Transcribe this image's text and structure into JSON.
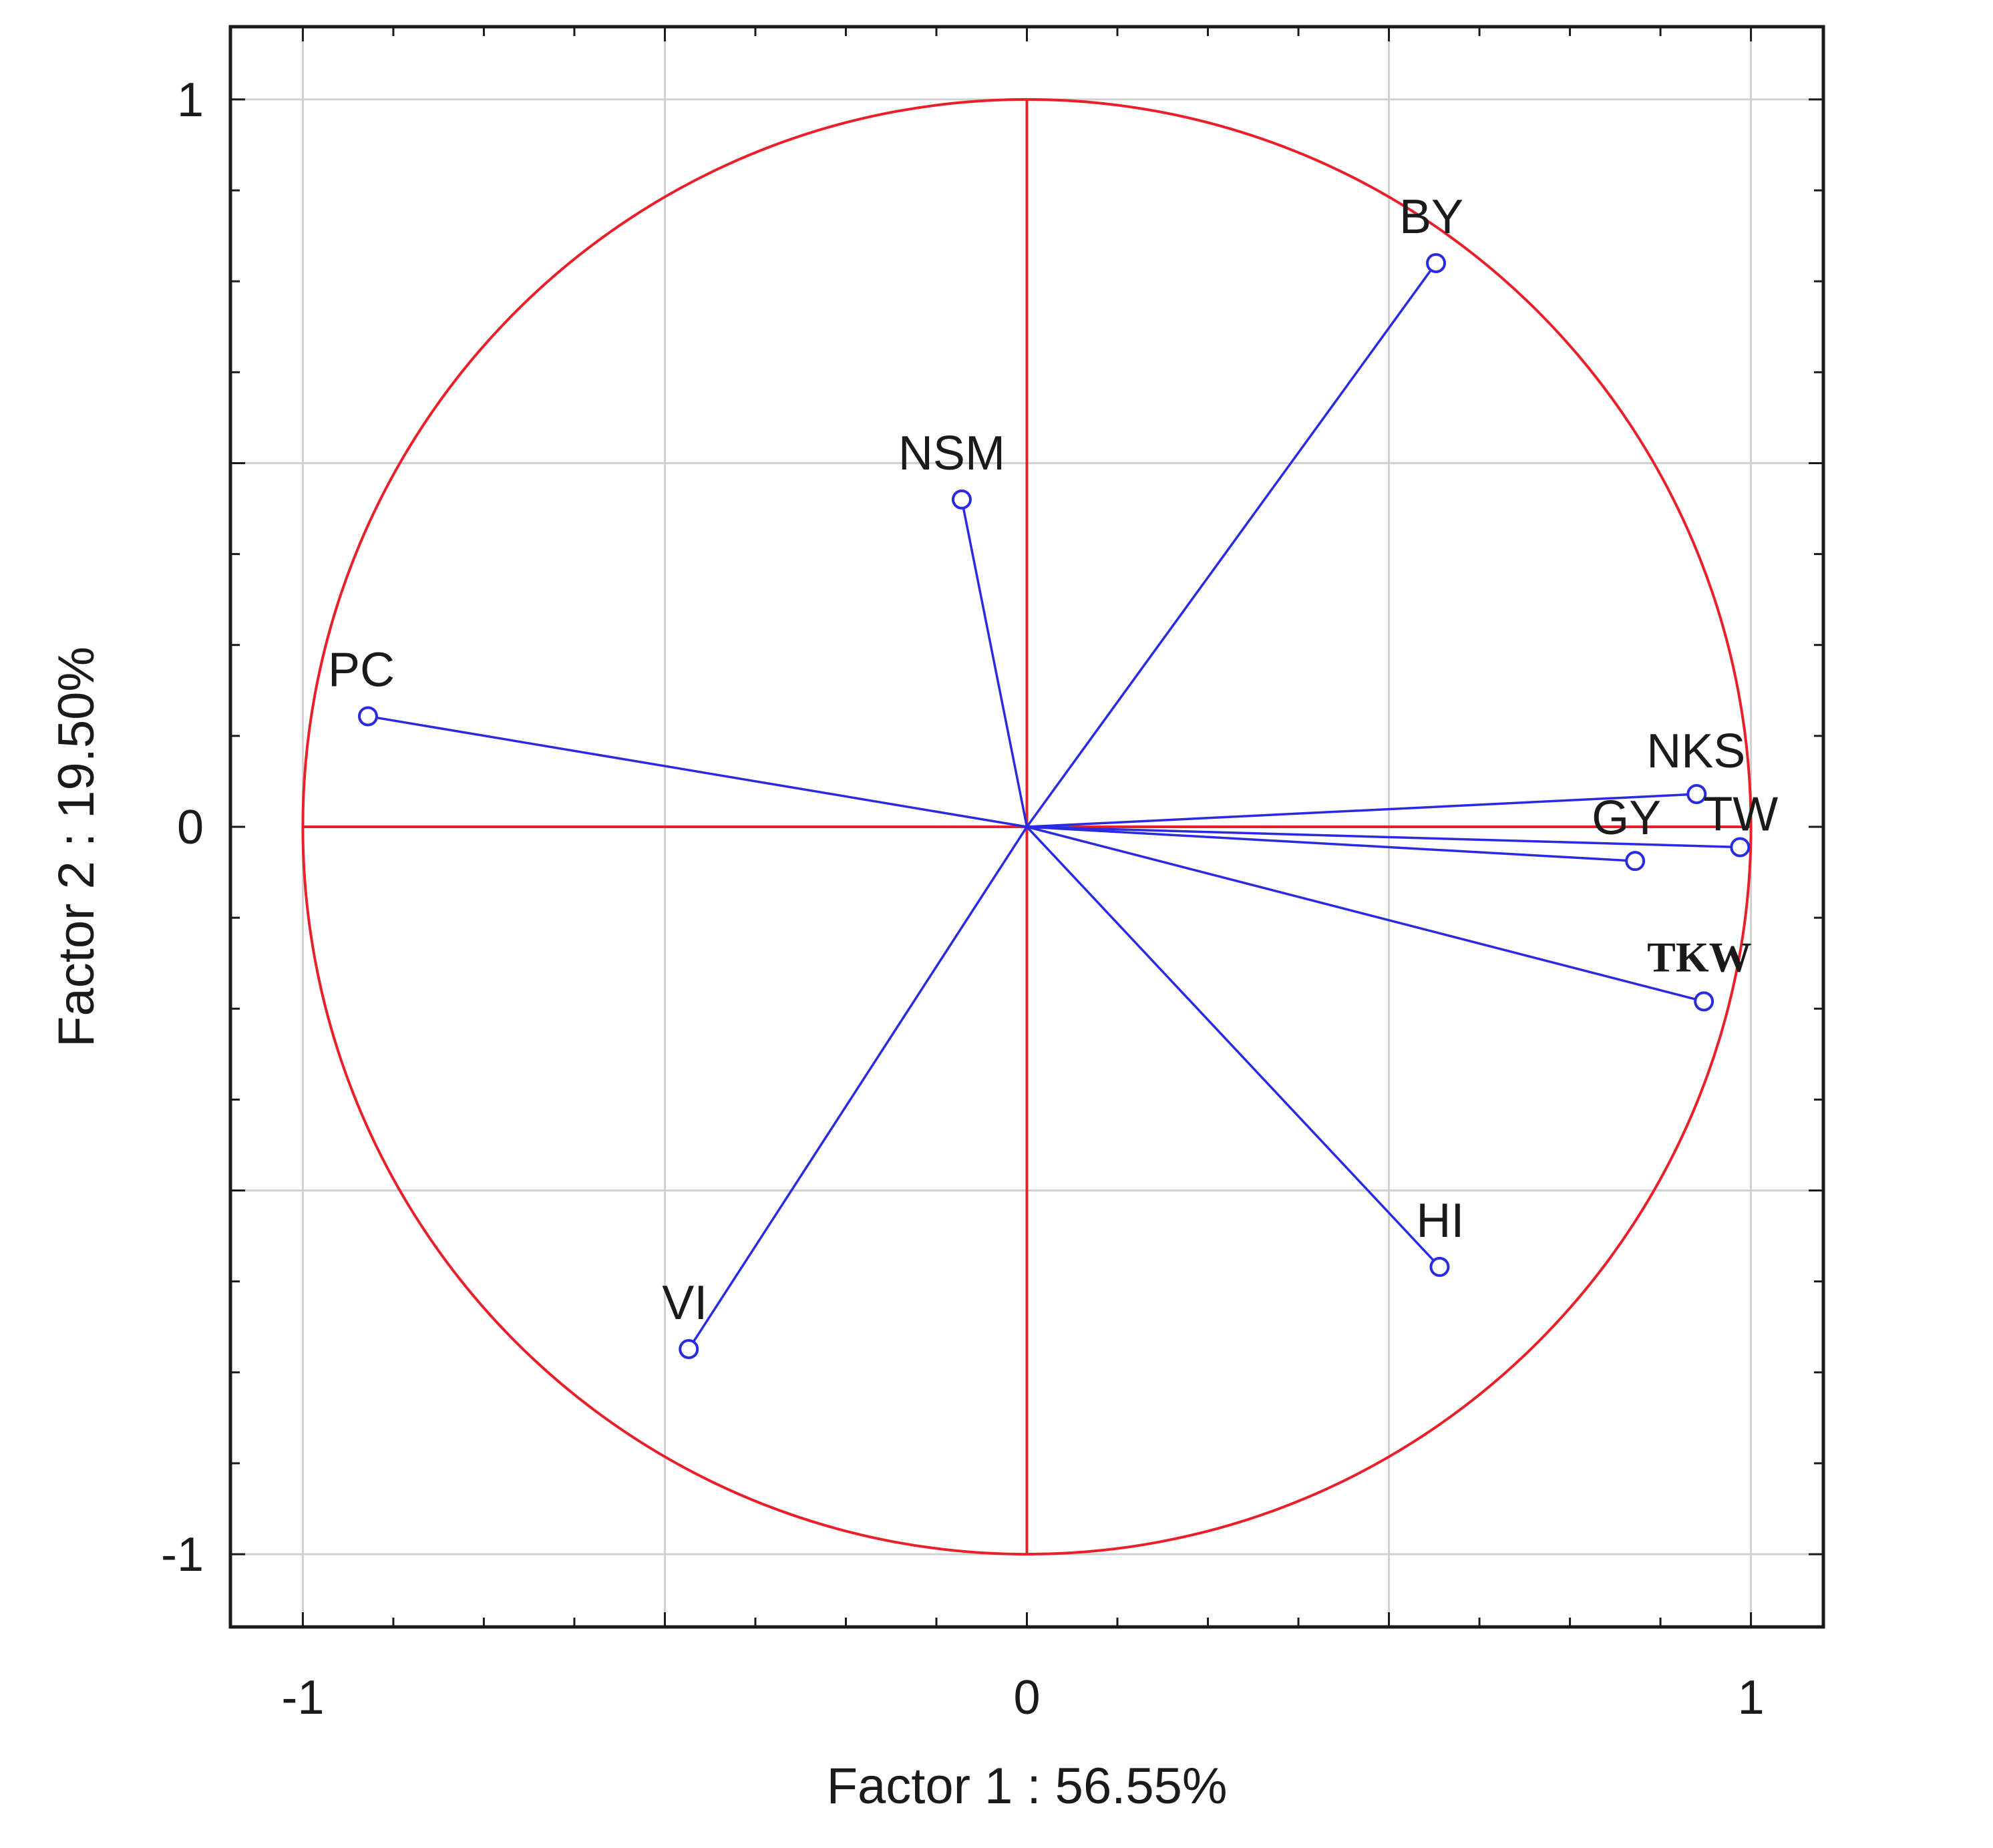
{
  "chart_data": {
    "type": "scatter",
    "xlabel": "Factor 1 : 56.55%",
    "ylabel": "Factor 2 : 19.50%",
    "xlim": [
      -1.1,
      1.1
    ],
    "ylim": [
      -1.1,
      1.1
    ],
    "x_ticks": [
      -1,
      0,
      1
    ],
    "x_tick_labels": [
      "-1",
      "0",
      "1"
    ],
    "y_ticks": [
      1,
      0,
      -1
    ],
    "y_tick_labels": [
      "1",
      "0",
      "-1"
    ],
    "grid": true,
    "unit_circle": true,
    "vectors_from_origin": true,
    "colors": {
      "circle": "#e8202a",
      "axes": "#e8202a",
      "vectors": "#2a2ae0",
      "grid": "#d0d0d0",
      "frame": "#1a1a1a"
    },
    "points": [
      {
        "label": "BY",
        "x": 0.565,
        "y": 0.775
      },
      {
        "label": "NSM",
        "x": -0.09,
        "y": 0.45
      },
      {
        "label": "PC",
        "x": -0.91,
        "y": 0.152
      },
      {
        "label": "NKS",
        "x": 0.925,
        "y": 0.045
      },
      {
        "label": "TW",
        "x": 0.985,
        "y": -0.028
      },
      {
        "label": "GY",
        "x": 0.84,
        "y": -0.047
      },
      {
        "label": "TKW",
        "x": 0.935,
        "y": -0.24
      },
      {
        "label": "HI",
        "x": 0.57,
        "y": -0.605
      },
      {
        "label": "VI",
        "x": -0.467,
        "y": -0.718
      }
    ]
  }
}
